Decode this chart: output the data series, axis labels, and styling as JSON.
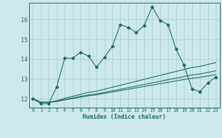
{
  "xlabel": "Humidex (Indice chaleur)",
  "background_color": "#cde8ec",
  "grid_color": "#aacdd4",
  "line_color": "#1a6b5e",
  "x_ticks": [
    0,
    1,
    2,
    3,
    4,
    5,
    6,
    7,
    8,
    9,
    10,
    11,
    12,
    13,
    14,
    15,
    16,
    17,
    18,
    19,
    20,
    21,
    22,
    23
  ],
  "y_ticks": [
    12,
    13,
    14,
    15,
    16
  ],
  "ylim": [
    11.55,
    16.85
  ],
  "xlim": [
    -0.5,
    23.5
  ],
  "series": [
    {
      "x": [
        0,
        1,
        2,
        3,
        4,
        5,
        6,
        7,
        8,
        9,
        10,
        11,
        12,
        13,
        14,
        15,
        16,
        17,
        18,
        19,
        20,
        21,
        22,
        23
      ],
      "y": [
        12.0,
        11.75,
        11.75,
        12.6,
        14.05,
        14.05,
        14.35,
        14.15,
        13.6,
        14.1,
        14.65,
        15.75,
        15.6,
        15.35,
        15.7,
        16.65,
        15.95,
        15.75,
        14.5,
        13.7,
        12.5,
        12.35,
        12.8,
        13.1
      ],
      "with_markers": true
    },
    {
      "x": [
        0,
        1,
        2,
        3,
        4,
        5,
        6,
        7,
        8,
        9,
        10,
        11,
        12,
        13,
        14,
        15,
        16,
        17,
        18,
        19,
        20,
        21,
        22,
        23
      ],
      "y": [
        12.0,
        11.82,
        11.82,
        11.9,
        12.02,
        12.12,
        12.22,
        12.32,
        12.38,
        12.48,
        12.58,
        12.68,
        12.78,
        12.88,
        12.98,
        13.08,
        13.18,
        13.28,
        13.38,
        13.48,
        13.58,
        13.63,
        13.73,
        13.83
      ],
      "with_markers": false
    },
    {
      "x": [
        0,
        1,
        2,
        3,
        4,
        5,
        6,
        7,
        8,
        9,
        10,
        11,
        12,
        13,
        14,
        15,
        16,
        17,
        18,
        19,
        20,
        21,
        22,
        23
      ],
      "y": [
        12.0,
        11.82,
        11.82,
        11.87,
        11.96,
        12.04,
        12.12,
        12.19,
        12.24,
        12.32,
        12.4,
        12.48,
        12.56,
        12.64,
        12.72,
        12.8,
        12.88,
        12.96,
        13.04,
        13.12,
        13.2,
        13.25,
        13.33,
        13.41
      ],
      "with_markers": false
    },
    {
      "x": [
        0,
        1,
        2,
        3,
        4,
        5,
        6,
        7,
        8,
        9,
        10,
        11,
        12,
        13,
        14,
        15,
        16,
        17,
        18,
        19,
        20,
        21,
        22,
        23
      ],
      "y": [
        12.0,
        11.82,
        11.82,
        11.86,
        11.94,
        12.01,
        12.08,
        12.15,
        12.2,
        12.27,
        12.34,
        12.41,
        12.48,
        12.55,
        12.62,
        12.69,
        12.76,
        12.83,
        12.9,
        12.97,
        13.04,
        13.08,
        13.15,
        13.22
      ],
      "with_markers": false
    }
  ]
}
